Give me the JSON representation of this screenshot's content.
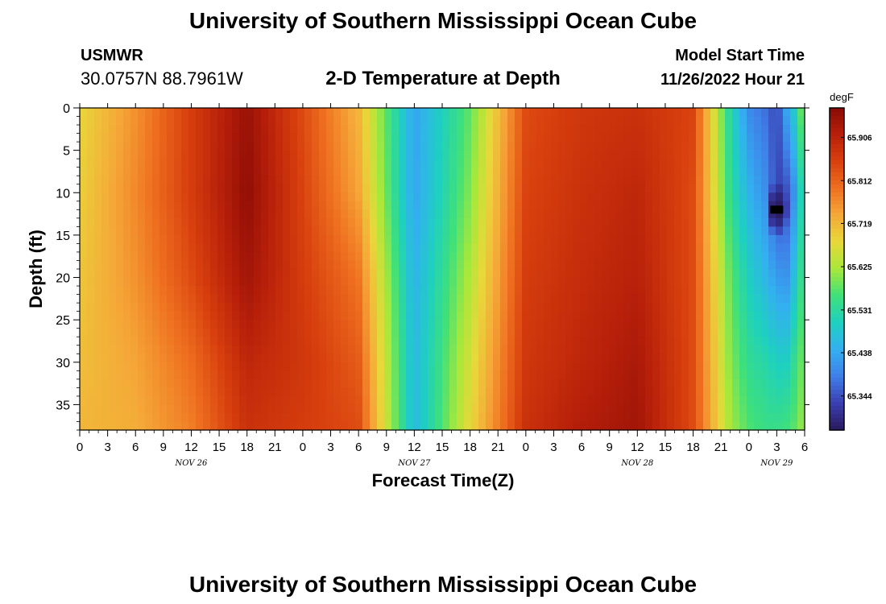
{
  "page": {
    "title": "University of Southern Mississippi Ocean Cube",
    "footer_title": "University of Southern Mississippi Ocean Cube"
  },
  "header": {
    "station": "USMWR",
    "coords": "30.0757N  88.7961W",
    "subtitle": "2-D Temperature at Depth",
    "model_start_label": "Model Start Time",
    "model_start_value": "11/26/2022 Hour 21"
  },
  "chart_data": {
    "type": "heatmap",
    "title": "2-D Temperature at Depth",
    "xlabel": "Forecast Time(Z)",
    "ylabel": "Depth (ft)",
    "x_tick_labels": [
      "0",
      "3",
      "6",
      "9",
      "12",
      "15",
      "18",
      "21",
      "0",
      "3",
      "6",
      "9",
      "12",
      "15",
      "18",
      "21",
      "0",
      "3",
      "6",
      "9",
      "12",
      "15",
      "18",
      "21",
      "0",
      "3",
      "6"
    ],
    "x_range_hours": [
      0,
      78
    ],
    "date_labels": [
      {
        "label": "NOV 26",
        "hour": 12
      },
      {
        "label": "NOV 27",
        "hour": 36
      },
      {
        "label": "NOV 28",
        "hour": 60
      },
      {
        "label": "NOV 29",
        "hour": 75
      }
    ],
    "y_tick_labels": [
      "0",
      "5",
      "10",
      "15",
      "20",
      "25",
      "30",
      "35"
    ],
    "y_ticks": [
      0,
      5,
      10,
      15,
      20,
      25,
      30,
      35
    ],
    "ylim": [
      38,
      0
    ],
    "colorbar": {
      "unit": "degF",
      "tick_labels": [
        "65.906",
        "65.812",
        "65.719",
        "65.625",
        "65.531",
        "65.438",
        "65.344"
      ],
      "tick_values": [
        65.906,
        65.812,
        65.719,
        65.625,
        65.531,
        65.438,
        65.344
      ],
      "range": [
        65.27,
        65.97
      ],
      "colors": [
        "#2a1a5e",
        "#3a3fb0",
        "#3f7fe8",
        "#33b0f0",
        "#1ed0c0",
        "#3fe07a",
        "#a8e83a",
        "#e8d83a",
        "#f5a838",
        "#ef7020",
        "#d8400e",
        "#b8200a",
        "#8a0a05"
      ]
    },
    "field_samples": {
      "hours": [
        0,
        6,
        12,
        18,
        24,
        30,
        36,
        42,
        48,
        54,
        60,
        66,
        70,
        72,
        74,
        75,
        76,
        77,
        78
      ],
      "depths": [
        0,
        10,
        20,
        30,
        38
      ],
      "values_degF": [
        [
          65.68,
          65.76,
          65.86,
          65.95,
          65.84,
          65.72,
          65.43,
          65.58,
          65.84,
          65.87,
          65.88,
          65.85,
          65.52,
          65.4,
          65.37,
          65.33,
          65.43,
          65.5,
          65.63
        ],
        [
          65.69,
          65.77,
          65.86,
          65.96,
          65.85,
          65.74,
          65.43,
          65.6,
          65.85,
          65.88,
          65.9,
          65.84,
          65.54,
          65.45,
          65.4,
          65.33,
          65.34,
          65.42,
          65.56
        ],
        [
          65.7,
          65.76,
          65.84,
          65.94,
          65.86,
          65.79,
          65.45,
          65.63,
          65.86,
          65.89,
          65.91,
          65.84,
          65.58,
          65.5,
          65.45,
          65.42,
          65.41,
          65.48,
          65.58
        ],
        [
          65.71,
          65.74,
          65.8,
          65.9,
          65.87,
          65.82,
          65.46,
          65.66,
          65.87,
          65.9,
          65.93,
          65.84,
          65.6,
          65.54,
          65.52,
          65.5,
          65.5,
          65.55,
          65.6
        ],
        [
          65.72,
          65.73,
          65.78,
          65.88,
          65.86,
          65.84,
          65.46,
          65.68,
          65.88,
          65.92,
          65.94,
          65.84,
          65.62,
          65.57,
          65.55,
          65.55,
          65.56,
          65.58,
          65.62
        ]
      ],
      "minimum_spot": {
        "hour": 75,
        "depth": 12,
        "value": 65.27
      }
    }
  }
}
